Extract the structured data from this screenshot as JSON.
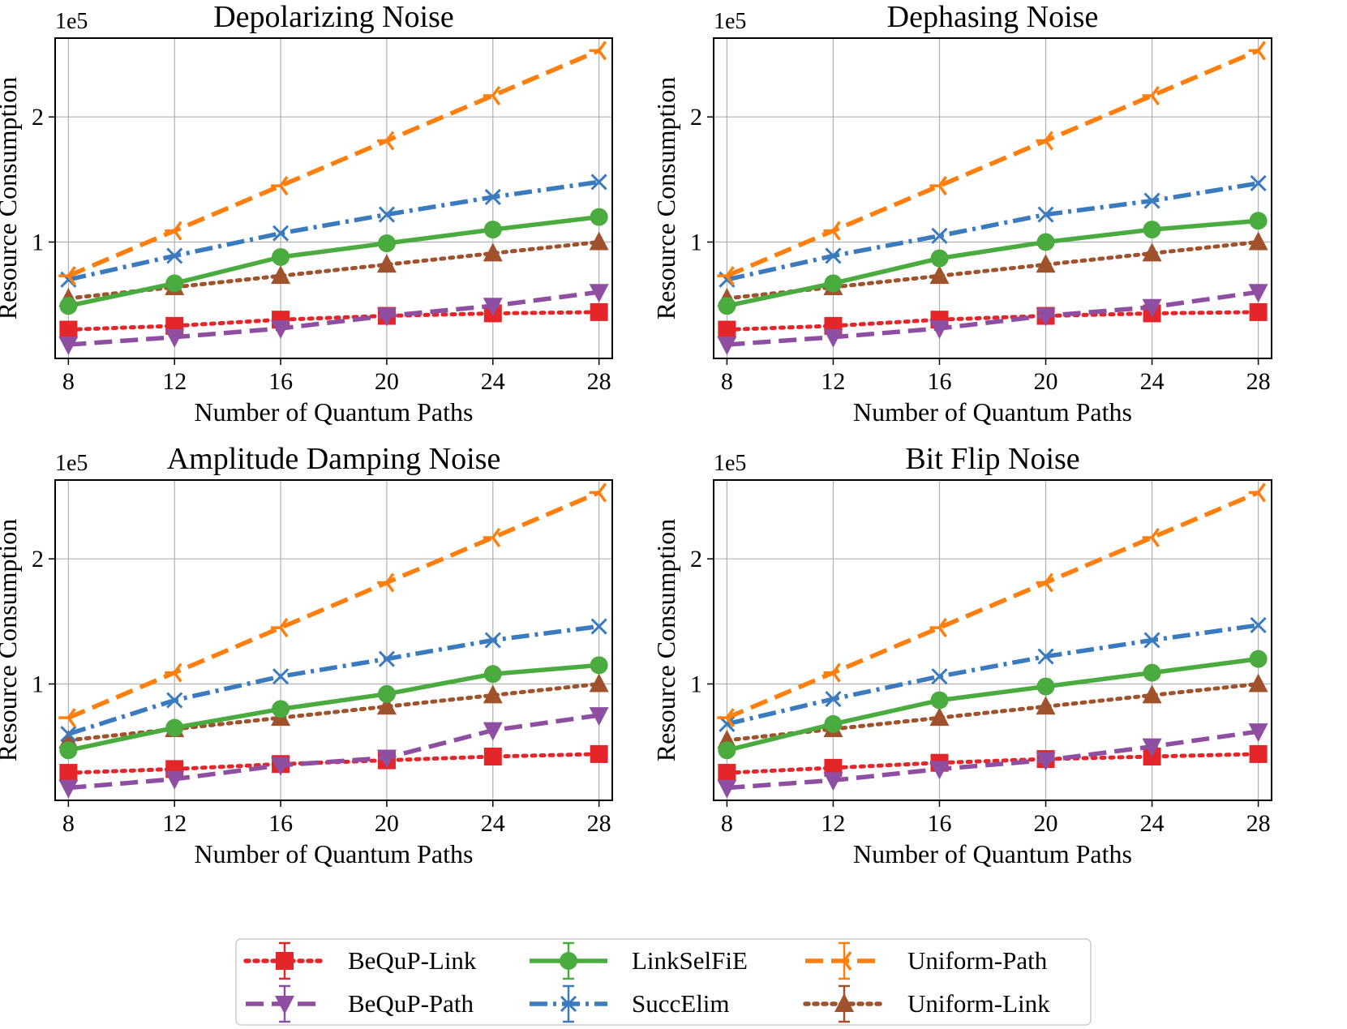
{
  "chart_data": [
    {
      "type": "line",
      "title": "Depolarizing Noise",
      "xlabel": "Number of Quantum Paths",
      "ylabel": "Resource Consumption",
      "y_scale_label": "1e5",
      "x": [
        8,
        12,
        16,
        20,
        24,
        28
      ],
      "x_ticks": [
        "8",
        "12",
        "16",
        "20",
        "24",
        "28"
      ],
      "y_ticks": [
        1,
        2
      ],
      "y_tick_labels": [
        "1",
        "2"
      ],
      "xlim": [
        7.5,
        28.5
      ],
      "ylim": [
        0.07,
        2.63
      ],
      "grid": true,
      "series": [
        {
          "name": "BeQuP-Link",
          "values": [
            0.3,
            0.33,
            0.38,
            0.41,
            0.43,
            0.44
          ]
        },
        {
          "name": "BeQuP-Path",
          "values": [
            0.18,
            0.24,
            0.31,
            0.41,
            0.49,
            0.6
          ]
        },
        {
          "name": "LinkSelFiE",
          "values": [
            0.49,
            0.67,
            0.88,
            0.99,
            1.1,
            1.2
          ]
        },
        {
          "name": "SuccElim",
          "values": [
            0.7,
            0.89,
            1.07,
            1.22,
            1.36,
            1.48
          ]
        },
        {
          "name": "Uniform-Path",
          "values": [
            0.73,
            1.09,
            1.45,
            1.81,
            2.17,
            2.53
          ]
        },
        {
          "name": "Uniform-Link",
          "values": [
            0.55,
            0.64,
            0.73,
            0.82,
            0.91,
            1.0
          ]
        }
      ]
    },
    {
      "type": "line",
      "title": "Dephasing Noise",
      "xlabel": "Number of Quantum Paths",
      "ylabel": "Resource Consumption",
      "y_scale_label": "1e5",
      "x": [
        8,
        12,
        16,
        20,
        24,
        28
      ],
      "x_ticks": [
        "8",
        "12",
        "16",
        "20",
        "24",
        "28"
      ],
      "y_ticks": [
        1,
        2
      ],
      "y_tick_labels": [
        "1",
        "2"
      ],
      "xlim": [
        7.5,
        28.5
      ],
      "ylim": [
        0.07,
        2.63
      ],
      "grid": true,
      "series": [
        {
          "name": "BeQuP-Link",
          "values": [
            0.3,
            0.33,
            0.38,
            0.41,
            0.43,
            0.44
          ]
        },
        {
          "name": "BeQuP-Path",
          "values": [
            0.18,
            0.24,
            0.31,
            0.41,
            0.48,
            0.6
          ]
        },
        {
          "name": "LinkSelFiE",
          "values": [
            0.49,
            0.67,
            0.87,
            1.0,
            1.1,
            1.17
          ]
        },
        {
          "name": "SuccElim",
          "values": [
            0.7,
            0.89,
            1.05,
            1.22,
            1.33,
            1.47
          ]
        },
        {
          "name": "Uniform-Path",
          "values": [
            0.73,
            1.09,
            1.45,
            1.81,
            2.17,
            2.53
          ]
        },
        {
          "name": "Uniform-Link",
          "values": [
            0.55,
            0.64,
            0.73,
            0.82,
            0.91,
            1.0
          ]
        }
      ]
    },
    {
      "type": "line",
      "title": "Amplitude Damping Noise",
      "xlabel": "Number of Quantum Paths",
      "ylabel": "Resource Consumption",
      "y_scale_label": "1e5",
      "x": [
        8,
        12,
        16,
        20,
        24,
        28
      ],
      "x_ticks": [
        "8",
        "12",
        "16",
        "20",
        "24",
        "28"
      ],
      "y_ticks": [
        1,
        2
      ],
      "y_tick_labels": [
        "1",
        "2"
      ],
      "xlim": [
        7.5,
        28.5
      ],
      "ylim": [
        0.07,
        2.63
      ],
      "grid": true,
      "series": [
        {
          "name": "BeQuP-Link",
          "values": [
            0.29,
            0.32,
            0.36,
            0.39,
            0.42,
            0.44
          ]
        },
        {
          "name": "BeQuP-Path",
          "values": [
            0.17,
            0.24,
            0.35,
            0.41,
            0.63,
            0.75
          ]
        },
        {
          "name": "LinkSelFiE",
          "values": [
            0.47,
            0.65,
            0.8,
            0.92,
            1.08,
            1.15
          ]
        },
        {
          "name": "SuccElim",
          "values": [
            0.6,
            0.87,
            1.06,
            1.2,
            1.35,
            1.46
          ]
        },
        {
          "name": "Uniform-Path",
          "values": [
            0.73,
            1.09,
            1.45,
            1.81,
            2.17,
            2.53
          ]
        },
        {
          "name": "Uniform-Link",
          "values": [
            0.55,
            0.64,
            0.73,
            0.82,
            0.91,
            1.0
          ]
        }
      ]
    },
    {
      "type": "line",
      "title": "Bit Flip Noise",
      "xlabel": "Number of Quantum Paths",
      "ylabel": "Resource Consumption",
      "y_scale_label": "1e5",
      "x": [
        8,
        12,
        16,
        20,
        24,
        28
      ],
      "x_ticks": [
        "8",
        "12",
        "16",
        "20",
        "24",
        "28"
      ],
      "y_ticks": [
        1,
        2
      ],
      "y_tick_labels": [
        "1",
        "2"
      ],
      "xlim": [
        7.5,
        28.5
      ],
      "ylim": [
        0.07,
        2.63
      ],
      "grid": true,
      "series": [
        {
          "name": "BeQuP-Link",
          "values": [
            0.29,
            0.33,
            0.37,
            0.4,
            0.42,
            0.44
          ]
        },
        {
          "name": "BeQuP-Path",
          "values": [
            0.17,
            0.23,
            0.32,
            0.39,
            0.5,
            0.62
          ]
        },
        {
          "name": "LinkSelFiE",
          "values": [
            0.47,
            0.68,
            0.87,
            0.98,
            1.09,
            1.2
          ]
        },
        {
          "name": "SuccElim",
          "values": [
            0.68,
            0.88,
            1.06,
            1.22,
            1.35,
            1.47
          ]
        },
        {
          "name": "Uniform-Path",
          "values": [
            0.73,
            1.09,
            1.45,
            1.81,
            2.17,
            2.53
          ]
        },
        {
          "name": "Uniform-Link",
          "values": [
            0.55,
            0.64,
            0.73,
            0.82,
            0.91,
            1.0
          ]
        }
      ]
    }
  ],
  "legend": {
    "position": "bottom-center",
    "entries": [
      "BeQuP-Link",
      "BeQuP-Path",
      "LinkSelFiE",
      "SuccElim",
      "Uniform-Path",
      "Uniform-Link"
    ]
  },
  "series_styles": {
    "BeQuP-Link": {
      "color": "#e4262b",
      "marker": "square",
      "line": "dotted"
    },
    "BeQuP-Path": {
      "color": "#8e4ea2",
      "marker": "triangle-down",
      "line": "dashed"
    },
    "LinkSelFiE": {
      "color": "#4aab3f",
      "marker": "circle",
      "line": "solid"
    },
    "SuccElim": {
      "color": "#3a7bbf",
      "marker": "x",
      "line": "dashdot"
    },
    "Uniform-Path": {
      "color": "#ff7f0e",
      "marker": "tri-right",
      "line": "dashed"
    },
    "Uniform-Link": {
      "color": "#a0522d",
      "marker": "triangle-up",
      "line": "dotted"
    }
  }
}
